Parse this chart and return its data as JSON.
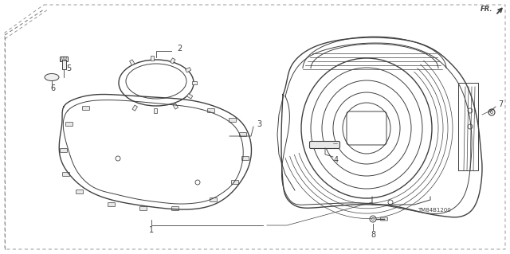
{
  "background_color": "#ffffff",
  "line_color": "#404040",
  "diagram_code": "TM84B1200",
  "figsize": [
    6.4,
    3.19
  ],
  "dpi": 100,
  "border_dash": [
    4,
    3
  ]
}
